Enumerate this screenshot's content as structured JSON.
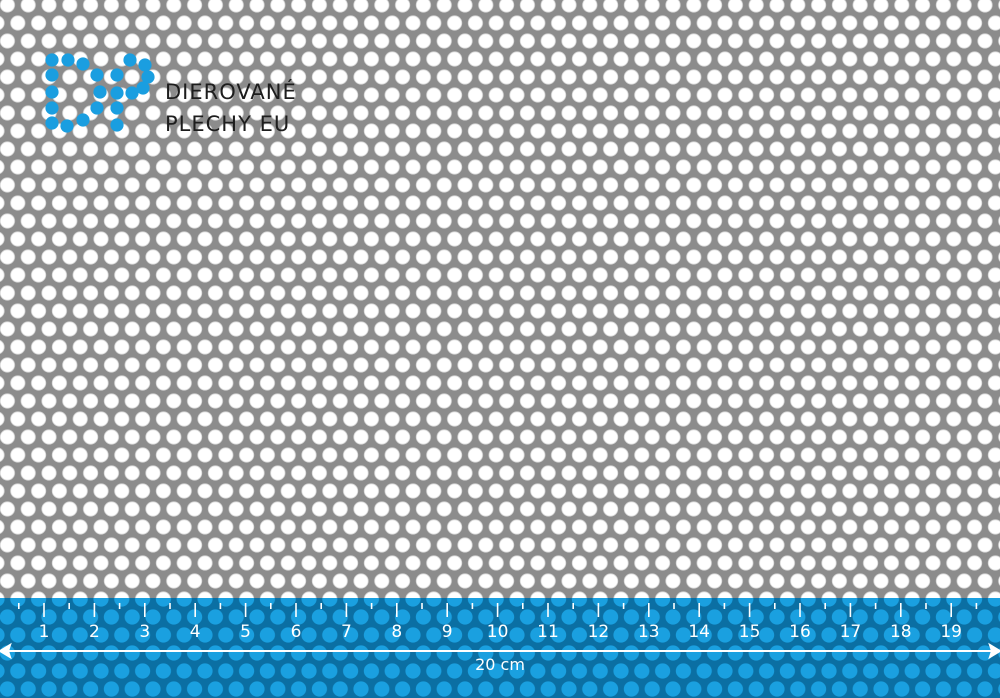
{
  "brand": {
    "line1": "DIEROVANÉ",
    "line2": "PLECHY EU",
    "logo_letters": "DP",
    "logo_color": "#1a9ee0"
  },
  "colors": {
    "sheet": "#8c8c8c",
    "hole": "#ffffff",
    "ruler_band": "#0b6fa3",
    "ruler_hole": "#1aa0e0"
  },
  "ruler": {
    "marks": [
      "1",
      "2",
      "3",
      "4",
      "5",
      "6",
      "7",
      "8",
      "9",
      "10",
      "11",
      "12",
      "13",
      "14",
      "15",
      "16",
      "17",
      "18",
      "19"
    ],
    "total_label": "20 cm"
  }
}
